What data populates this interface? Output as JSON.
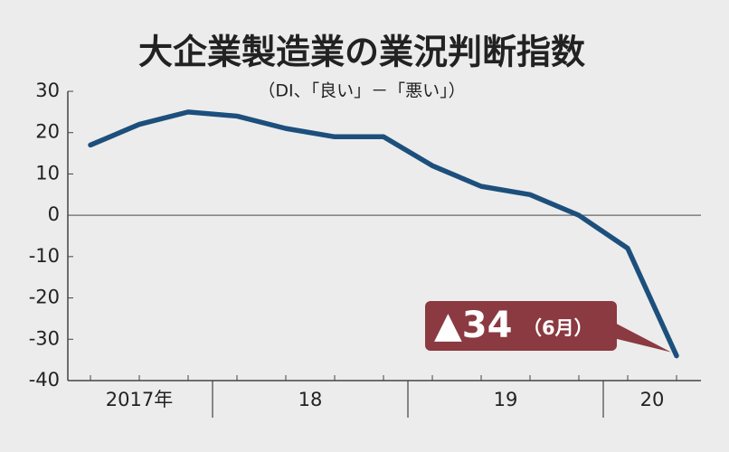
{
  "chart_data": {
    "type": "line",
    "title": "大企業製造業の業況判断指数",
    "subtitle": "（DI、「良い」－「悪い」）",
    "categories": [
      null,
      null,
      null,
      null,
      null,
      null,
      null,
      null,
      null,
      null,
      null,
      null,
      null
    ],
    "x_groups": [
      {
        "label": "2017年",
        "count": 3
      },
      {
        "label": "18",
        "count": 4
      },
      {
        "label": "19",
        "count": 4
      },
      {
        "label": "20",
        "count": 2
      }
    ],
    "series": [
      {
        "name": null,
        "color": "#1d4f7c",
        "values": [
          17,
          22,
          25,
          24,
          21,
          19,
          19,
          12,
          7,
          5,
          0,
          -8,
          -34
        ]
      }
    ],
    "ylim": [
      -40,
      30
    ],
    "yticks": [
      -40,
      -30,
      -20,
      -10,
      0,
      10,
      20,
      30
    ],
    "annotation": {
      "text": "▲34",
      "note": "（6月）",
      "color": "#8a3a40"
    }
  }
}
